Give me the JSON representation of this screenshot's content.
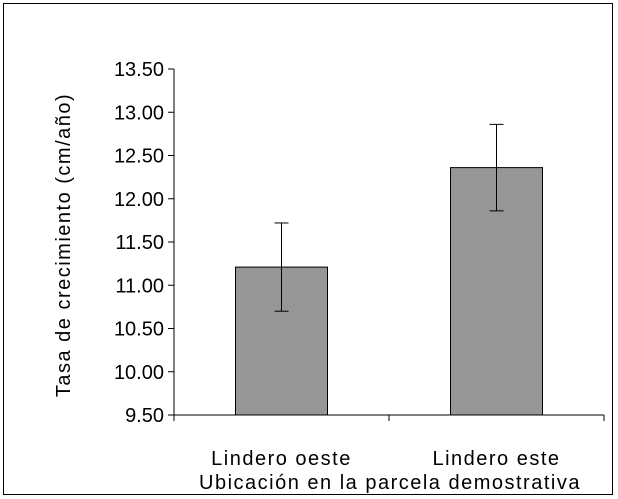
{
  "chart_data": {
    "type": "bar",
    "categories": [
      "Lindero oeste",
      "Lindero este"
    ],
    "values": [
      11.21,
      12.36
    ],
    "error": [
      0.51,
      0.5
    ],
    "title": "",
    "xlabel": "Ubicación en la parcela demostrativa",
    "ylabel": "Tasa de crecimiento (cm/año)",
    "ylim": [
      9.5,
      13.5
    ],
    "yticks": [
      "9.50",
      "10.00",
      "10.50",
      "11.00",
      "11.50",
      "12.00",
      "12.50",
      "13.00",
      "13.50"
    ],
    "bar_color": "#969696",
    "grid": false,
    "legend": "none"
  }
}
